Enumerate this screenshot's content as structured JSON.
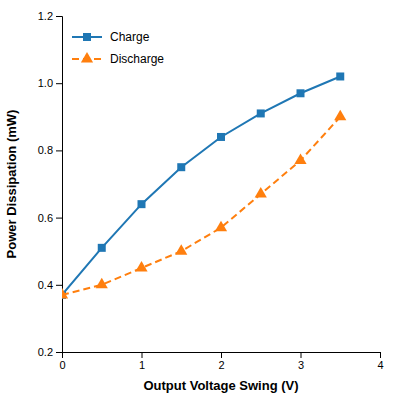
{
  "chart_data": {
    "type": "line",
    "x": [
      0,
      0.5,
      1.0,
      1.5,
      2.0,
      2.5,
      3.0,
      3.5
    ],
    "series": [
      {
        "name": "Charge",
        "values": [
          0.37,
          0.51,
          0.64,
          0.75,
          0.84,
          0.91,
          0.97,
          1.02
        ],
        "marker": "square",
        "line_style": "solid"
      },
      {
        "name": "Discharge",
        "values": [
          0.37,
          0.4,
          0.45,
          0.5,
          0.57,
          0.67,
          0.77,
          0.9
        ],
        "marker": "triangle",
        "line_style": "dashed"
      }
    ],
    "xlabel": "Output Voltage Swing (V)",
    "ylabel": "Power Dissipation (mW)",
    "xlim": [
      0,
      4
    ],
    "ylim": [
      0.2,
      1.2
    ],
    "xticks": [
      0,
      1,
      2,
      3,
      4
    ],
    "yticks": [
      0.2,
      0.4,
      0.6,
      0.8,
      {
        "value": 1.0,
        "label": "1.0"
      },
      1.2
    ],
    "grid": false,
    "legend": "upper left"
  }
}
